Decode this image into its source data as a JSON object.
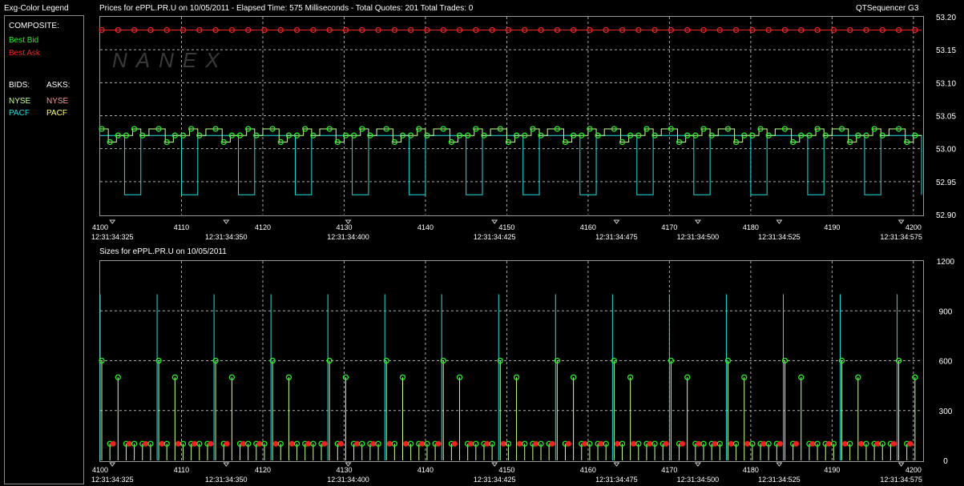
{
  "legend": {
    "title": "Exg-Color Legend",
    "composite_label": "COMPOSITE:",
    "best_bid": "Best Bid",
    "best_ask": "Best Ask",
    "bids_label": "BIDS:",
    "asks_label": "ASKS:",
    "bid_nyse": "NYSE",
    "bid_pacf": "PACF",
    "ask_nyse": "NYSE",
    "ask_pacf": "PACF"
  },
  "header": {
    "prices_title": "Prices for  ePPL.PR.U  on  10/05/2011   -  Elapsed Time: 575 Milliseconds   -  Total Quotes: 201   Total Trades: 0",
    "app_name": "QTSequencer G3",
    "sizes_title": "Sizes for  ePPL.PR.U  on  10/05/2011",
    "watermark": "NANEX"
  },
  "colors": {
    "best_bid": "#22ee22",
    "best_ask": "#ee2222",
    "nyse_bid": "#ccff99",
    "pacf_bid": "#22dddd",
    "nyse_ask": "#ff9999",
    "pacf_ask": "#ffff66",
    "grid": "#aaaaaa"
  },
  "chart_data": [
    {
      "type": "line",
      "title": "Prices for  ePPL.PR.U  on  10/05/2011",
      "x_ticks": [
        "4100",
        "4110",
        "4120",
        "4130",
        "4140",
        "4150",
        "4160",
        "4170",
        "4180",
        "4190",
        "4200"
      ],
      "time_ticks": [
        "12:31:34:325",
        "12:31:34:350",
        "12:31:34:400",
        "12:31:34:425",
        "12:31:34:475",
        "12:31:34:500",
        "12:31:34:525",
        "12:31:34:575"
      ],
      "time_tick_seq": [
        4101.5,
        4115.5,
        4130.5,
        4148.5,
        4163.5,
        4173.5,
        4183.5,
        4198.5
      ],
      "y_ticks": [
        "53.20",
        "53.15",
        "53.10",
        "53.05",
        "53.00",
        "52.95",
        "52.90"
      ],
      "xlim": [
        4100,
        4201
      ],
      "ylim": [
        52.9,
        53.2
      ],
      "grid": true,
      "pattern_note_period": 7,
      "series": [
        {
          "name": "Best Ask",
          "values": [
            53.18
          ]
        },
        {
          "name": "Best Bid",
          "values": [
            53.03,
            53.01,
            53.02,
            53.02,
            53.03,
            53.02,
            53.03
          ]
        },
        {
          "name": "NYSE",
          "values": [
            53.03,
            53.01,
            53.02,
            53.02,
            53.03,
            53.02,
            53.03
          ]
        },
        {
          "name": "PACF",
          "values": [
            53.02,
            53.02,
            53.02,
            52.93,
            52.93,
            53.02,
            53.02
          ]
        }
      ]
    },
    {
      "type": "bar",
      "title": "Sizes for  ePPL.PR.U  on  10/05/2011",
      "x_ticks": [
        "4100",
        "4110",
        "4120",
        "4130",
        "4140",
        "4150",
        "4160",
        "4170",
        "4180",
        "4190",
        "4200"
      ],
      "y_ticks": [
        "1200",
        "900",
        "600",
        "300",
        "0"
      ],
      "xlim": [
        4100,
        4201
      ],
      "ylim": [
        0,
        1200
      ],
      "grid": true,
      "pattern_note_period": 7,
      "series": [
        {
          "name": "Best Ask",
          "values": [
            100
          ]
        },
        {
          "name": "Best Bid",
          "values": [
            600,
            100,
            500,
            100,
            100,
            100,
            100
          ]
        },
        {
          "name": "PACF",
          "values": [
            1000,
            0,
            0,
            0,
            0,
            0,
            0
          ]
        }
      ]
    }
  ]
}
